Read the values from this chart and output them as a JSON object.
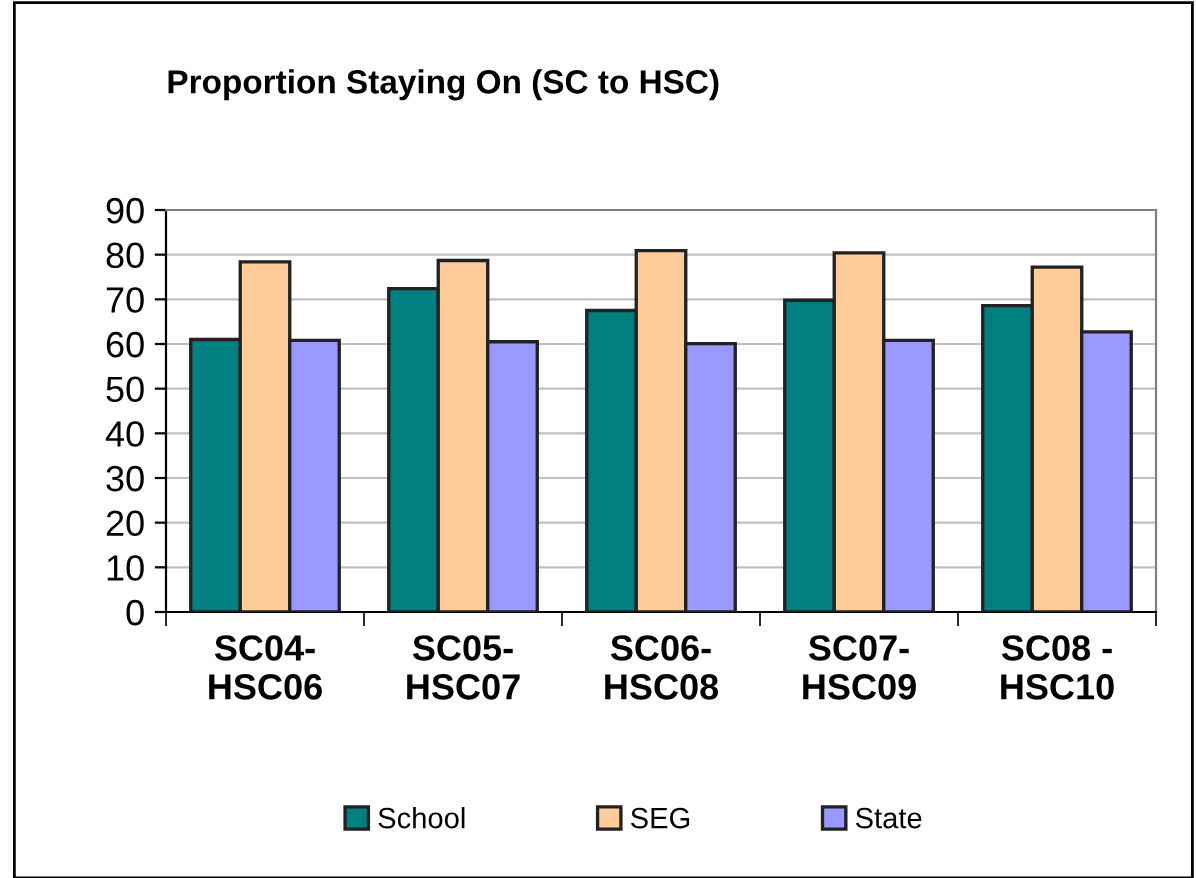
{
  "chart_data": {
    "type": "bar",
    "title": "Proportion Staying On (SC to HSC)",
    "categories": [
      "SC04-\nHSC06",
      "SC05-\nHSC07",
      "SC06-\nHSC08",
      "SC07-\nHSC09",
      "SC08 -\nHSC10"
    ],
    "series": [
      {
        "name": "School",
        "color": "#008080",
        "values": [
          61.0,
          72.4,
          67.5,
          69.8,
          68.6
        ]
      },
      {
        "name": "SEG",
        "color": "#ffcc99",
        "values": [
          78.4,
          78.7,
          80.9,
          80.4,
          77.2
        ]
      },
      {
        "name": "State",
        "color": "#9999ff",
        "values": [
          60.8,
          60.5,
          60.1,
          60.8,
          62.7
        ]
      }
    ],
    "ylim": [
      0,
      90
    ],
    "yticks": [
      0,
      10,
      20,
      30,
      40,
      50,
      60,
      70,
      80,
      90
    ],
    "grid": "y",
    "legend": "bottom"
  }
}
